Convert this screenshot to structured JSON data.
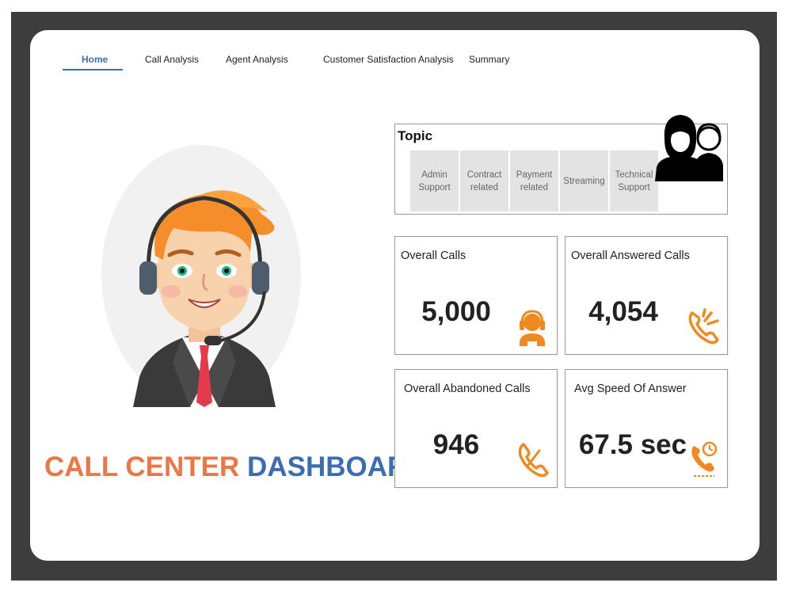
{
  "nav": {
    "tabs": [
      {
        "label": "Home"
      },
      {
        "label": "Call Analysis"
      },
      {
        "label": "Agent Analysis"
      },
      {
        "label": "Customer Satisfaction Analysis"
      },
      {
        "label": "Summary"
      }
    ],
    "active_index": 0
  },
  "hero": {
    "title_part1": "CALL CENTER",
    "title_part2": "DASHBOARD"
  },
  "topic": {
    "title": "Topic",
    "items": [
      {
        "label": "Admin Support"
      },
      {
        "label": "Contract related"
      },
      {
        "label": "Payment related"
      },
      {
        "label": "Streaming"
      },
      {
        "label": "Technical Support"
      }
    ],
    "icon": "call-center-agents-icon"
  },
  "kpis": [
    {
      "label": "Overall Calls",
      "value": "5,000",
      "icon": "agent-headset-icon"
    },
    {
      "label": "Overall Answered Calls",
      "value": "4,054",
      "icon": "phone-ringing-icon"
    },
    {
      "label": "Overall Abandoned Calls",
      "value": "946",
      "icon": "phone-icon"
    },
    {
      "label": "Avg Speed Of Answer",
      "value": "67.5 sec",
      "icon": "phone-speed-icon"
    }
  ],
  "colors": {
    "accent_orange": "#ed7744",
    "accent_blue": "#3b6db3",
    "frame": "#3d3d3d"
  }
}
